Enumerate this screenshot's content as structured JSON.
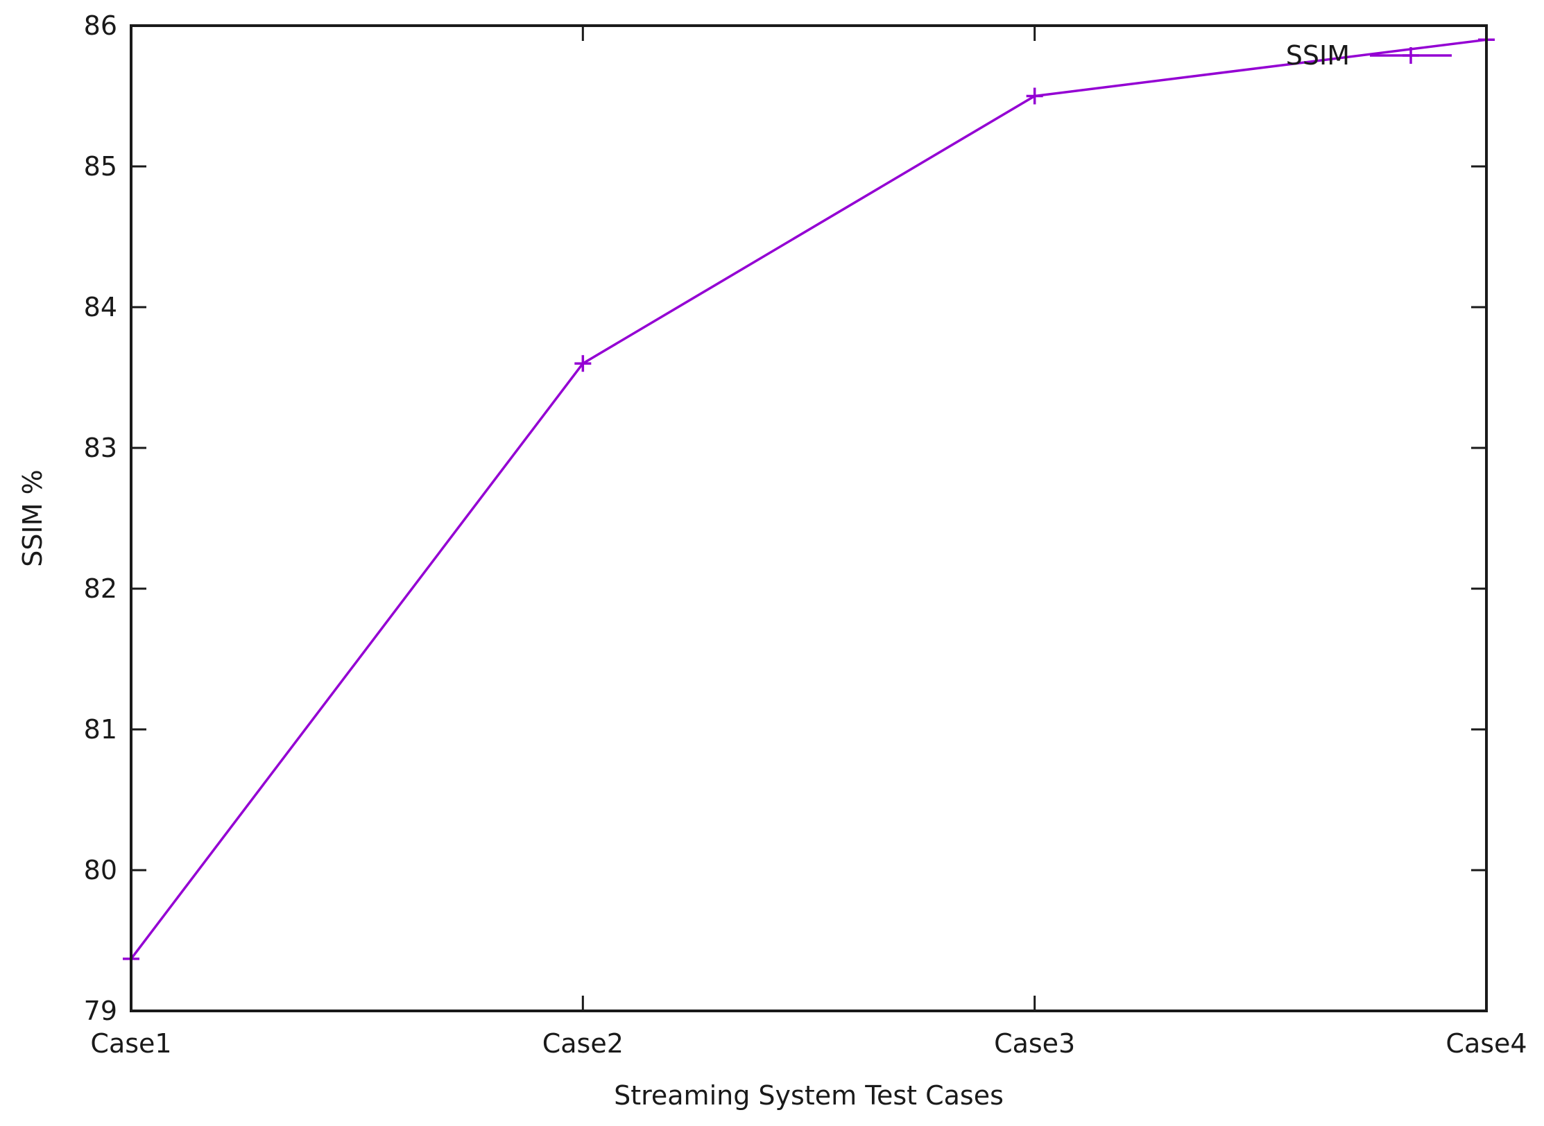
{
  "chart_data": {
    "type": "line",
    "title": "",
    "xlabel": "Streaming System Test Cases",
    "ylabel": "SSIM %",
    "categories": [
      "Case1",
      "Case2",
      "Case3",
      "Case4"
    ],
    "ylim": [
      79,
      86
    ],
    "yticks": [
      79,
      80,
      81,
      82,
      83,
      84,
      85,
      86
    ],
    "grid": false,
    "legend_position": "top-right",
    "series": [
      {
        "name": "SSIM",
        "values": [
          79.37,
          83.6,
          85.5,
          85.9
        ],
        "color": "#9400d3",
        "marker": "plus"
      }
    ]
  }
}
